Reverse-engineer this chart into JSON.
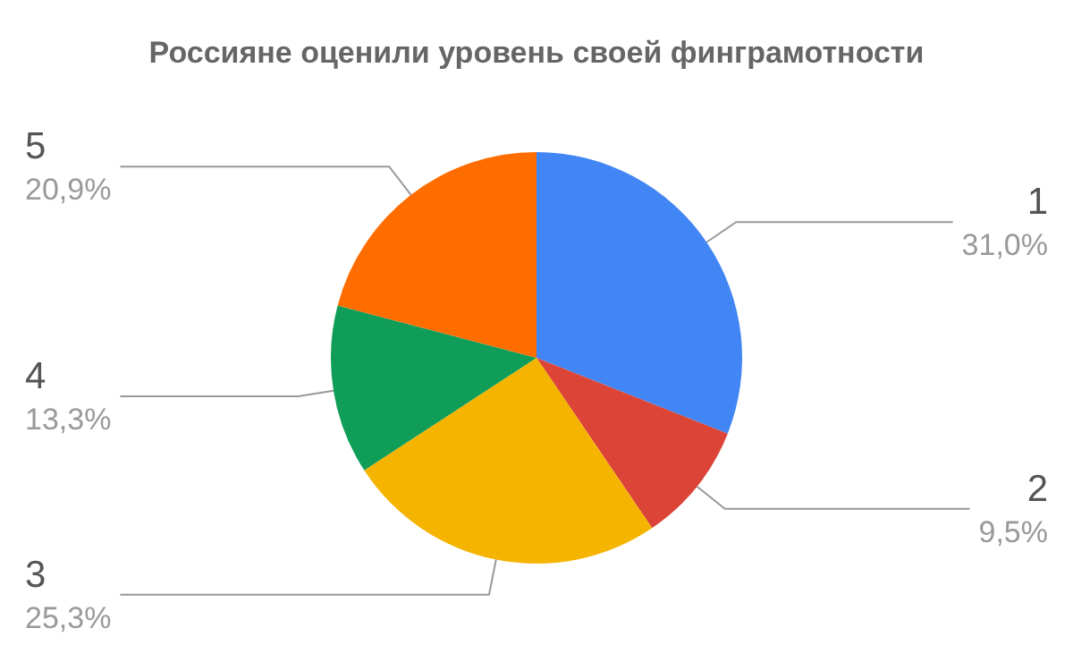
{
  "chart_data": {
    "type": "pie",
    "title": "Россияне оценили уровень своей финграмотности",
    "categories": [
      "1",
      "2",
      "3",
      "4",
      "5"
    ],
    "values": [
      31.0,
      9.5,
      25.3,
      13.3,
      20.9
    ],
    "colors": [
      "#4285f4",
      "#db4437",
      "#f4b400",
      "#0f9d58",
      "#ff6d00"
    ],
    "value_labels": [
      "31,0%",
      "9,5%",
      "25,3%",
      "13,3%",
      "20,9%"
    ]
  }
}
